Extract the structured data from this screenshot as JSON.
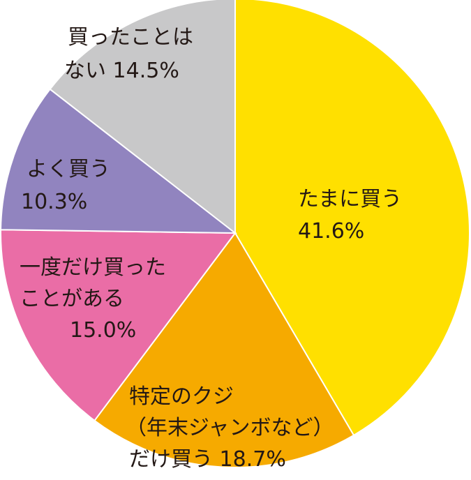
{
  "chart_data": {
    "type": "pie",
    "start": "top",
    "direction": "clockwise",
    "slices": [
      {
        "label": "たまに買う",
        "value": 41.6,
        "value_text": "41.6%",
        "color": "#ffe000",
        "label_lines": [
          "たまに買う",
          "41.6%"
        ]
      },
      {
        "label": "特定のクジ（年末ジャンボなど）だけ買う",
        "value": 18.7,
        "value_text": "18.7%",
        "color": "#f6aa00",
        "label_lines": [
          "特定のクジ",
          "（年末ジャンボなど）",
          "だけ買う 18.7%"
        ]
      },
      {
        "label": "一度だけ買ったことがある",
        "value": 15.0,
        "value_text": "15.0%",
        "color": "#ea6da6",
        "label_lines": [
          "一度だけ買った",
          "ことがある",
          "15.0%"
        ]
      },
      {
        "label": "よく買う",
        "value": 10.3,
        "value_text": "10.3%",
        "color": "#9184bf",
        "label_lines": [
          "よく買う",
          "10.3%"
        ]
      },
      {
        "label": "買ったことはない",
        "value": 14.5,
        "value_text": "14.5%",
        "color": "#c8c8c9",
        "label_lines": [
          "買ったことは",
          "ない 14.5%"
        ]
      }
    ]
  }
}
